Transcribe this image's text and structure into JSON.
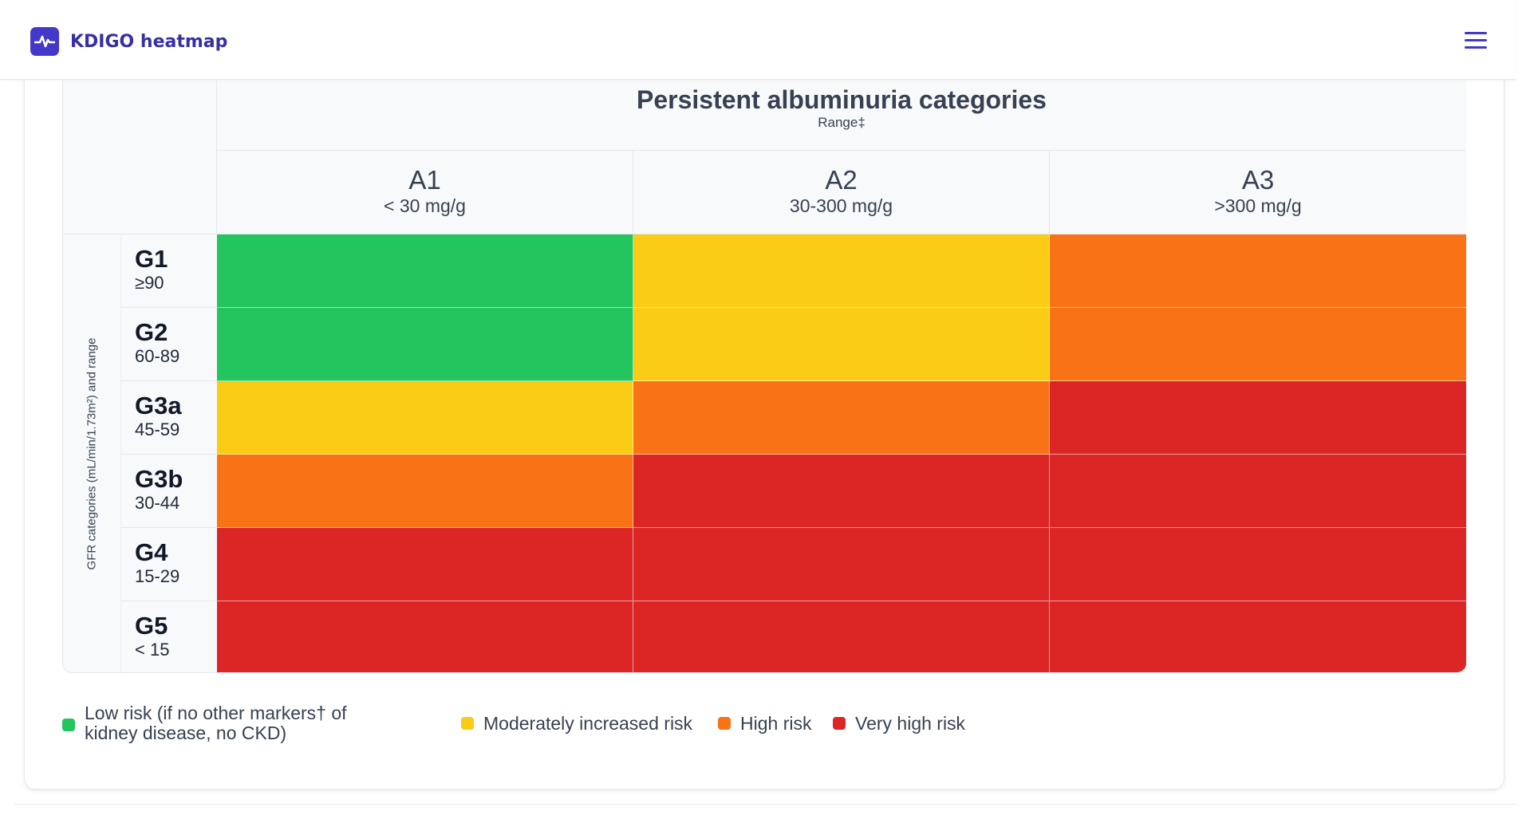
{
  "app": {
    "title": "KDIGO heatmap",
    "logo_icon": "heart-pulse-icon",
    "menu_icon": "hamburger-menu-icon",
    "accent": "#4338ca"
  },
  "heatmap": {
    "title": "Persistent albuminuria categories",
    "subtitle": "Range‡",
    "side_label": "GFR categories (mL/min/1.73m²) and range",
    "columns": [
      {
        "code": "A1",
        "range": "< 30 mg/g"
      },
      {
        "code": "A2",
        "range": "30-300 mg/g"
      },
      {
        "code": "A3",
        "range": ">300 mg/g"
      }
    ],
    "rows": [
      {
        "code": "G1",
        "range": "≥90"
      },
      {
        "code": "G2",
        "range": "60-89"
      },
      {
        "code": "G3a",
        "range": "45-59"
      },
      {
        "code": "G3b",
        "range": "30-44"
      },
      {
        "code": "G4",
        "range": "15-29"
      },
      {
        "code": "G5",
        "range": "< 15"
      }
    ],
    "risk_levels": [
      [
        "low",
        "moderate",
        "high"
      ],
      [
        "low",
        "moderate",
        "high"
      ],
      [
        "moderate",
        "high",
        "very_high"
      ],
      [
        "high",
        "very_high",
        "very_high"
      ],
      [
        "very_high",
        "very_high",
        "very_high"
      ],
      [
        "very_high",
        "very_high",
        "very_high"
      ]
    ],
    "colors": {
      "low": "#22c55e",
      "moderate": "#facc15",
      "high": "#f97316",
      "very_high": "#dc2626"
    }
  },
  "legend": {
    "low": "Low risk (if no other markers† of kidney disease, no CKD)",
    "moderate": "Moderately increased risk",
    "high": "High risk",
    "very_high": "Very high risk"
  }
}
